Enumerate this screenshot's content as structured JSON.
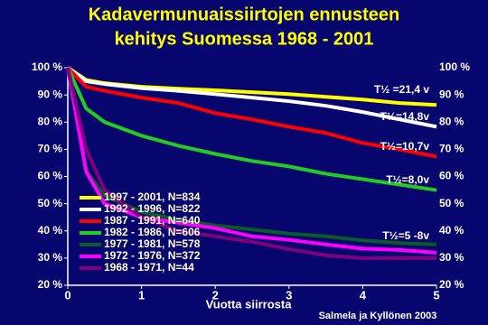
{
  "chart_data": {
    "type": "line",
    "title": [
      "Kadavermunuaissiirtojen ennusteen",
      "kehitys Suomessa 1968 - 2001"
    ],
    "xlabel": "Vuotta siirrosta",
    "note": "Salmela ja Kyllönen 2003",
    "x": [
      0,
      0.25,
      0.5,
      1,
      1.5,
      2,
      2.5,
      3,
      3.5,
      4,
      4.5,
      5
    ],
    "xlim": [
      0,
      5
    ],
    "xticks": [
      0,
      1,
      2,
      3,
      4,
      5
    ],
    "ylim": [
      20,
      100
    ],
    "yticks": [
      {
        "value": 20,
        "label": "20 %"
      },
      {
        "value": 30,
        "label": "30 %"
      },
      {
        "value": 40,
        "label": "40 %"
      },
      {
        "value": 50,
        "label": "50 %"
      },
      {
        "value": 60,
        "label": "60 %"
      },
      {
        "value": 70,
        "label": "70 %"
      },
      {
        "value": 80,
        "label": "80 %"
      },
      {
        "value": 90,
        "label": "90 %"
      },
      {
        "value": 100,
        "label": "100 %"
      }
    ],
    "legend": "lower left",
    "series": [
      {
        "name": "1997 - 2001, N=834",
        "color": "#ffff00",
        "values": [
          100,
          95.5,
          94.3,
          93,
          92.3,
          91.7,
          91,
          90.3,
          89.3,
          88.3,
          87,
          86.3
        ]
      },
      {
        "name": "1992 - 1996, N=822",
        "color": "#ffffff",
        "values": [
          100,
          95,
          94,
          92.5,
          91.5,
          90.3,
          89,
          87.7,
          86,
          83.7,
          81,
          78.3
        ]
      },
      {
        "name": "1987 - 1991, N=640",
        "color": "#ff0000",
        "values": [
          100,
          93,
          91.5,
          89,
          87,
          83.3,
          81,
          78.3,
          76,
          72.3,
          70,
          67.3
        ]
      },
      {
        "name": "1982 - 1986, N=606",
        "color": "#22cc22",
        "values": [
          100,
          85,
          80,
          75,
          71.3,
          68.3,
          65.7,
          63.7,
          61,
          59,
          57,
          55
        ]
      },
      {
        "name": "1977 - 1981, N=578",
        "color": "#0b5a2a",
        "values": [
          100,
          62,
          53,
          47,
          44,
          42,
          40.5,
          39,
          38,
          36.5,
          35.5,
          35
        ]
      },
      {
        "name": "1972 - 1976, N=372",
        "color": "#ff00ff",
        "values": [
          100,
          61.7,
          50,
          45,
          43,
          41,
          38,
          36.7,
          35,
          33.5,
          33,
          32
        ]
      },
      {
        "name": "1968 - 1971, N=44",
        "color": "#800080",
        "values": [
          100,
          70,
          55,
          45,
          40,
          38,
          36,
          33.3,
          31,
          30,
          30,
          30
        ]
      }
    ],
    "annotations": [
      "T½ =21,4 v",
      "T½=14,8v",
      "T½=10,7v",
      "T½=8,0v",
      "T½=5 -8v"
    ]
  }
}
